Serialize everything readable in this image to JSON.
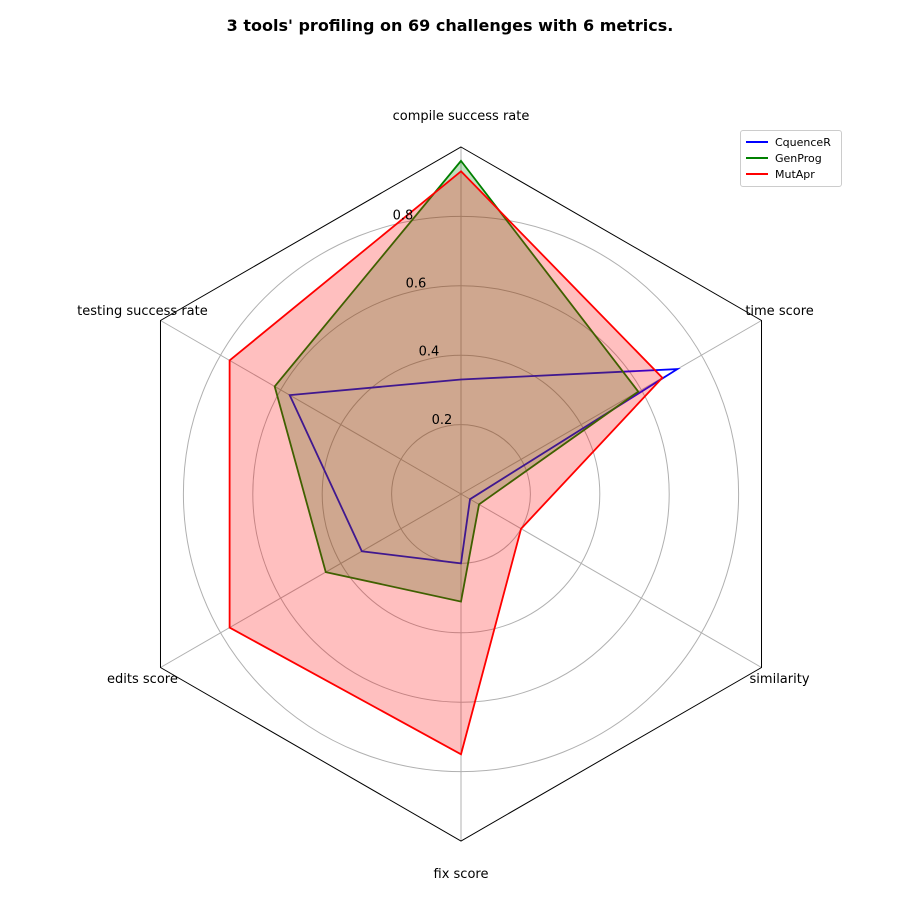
{
  "chart_data": {
    "type": "radar",
    "title": "3 tools' profiling on 69 challenges with 6 metrics.",
    "axes": [
      "compile success rate",
      "time score",
      "similarity",
      "fix score",
      "edits score",
      "testing success rate"
    ],
    "radial_ticks": [
      "0.2",
      "0.4",
      "0.6",
      "0.8"
    ],
    "radial_tick_values": [
      0.2,
      0.4,
      0.6,
      0.8
    ],
    "rmax": 1.0,
    "grid": true,
    "legend_position": "top-right",
    "series": [
      {
        "name": "CquenceR",
        "color": "#0000ff",
        "values": [
          0.33,
          0.72,
          0.03,
          0.2,
          0.33,
          0.57
        ],
        "fill": false
      },
      {
        "name": "GenProg",
        "color": "#008000",
        "values": [
          0.96,
          0.59,
          0.06,
          0.31,
          0.45,
          0.62
        ],
        "fill": true,
        "fill_color": "#008000"
      },
      {
        "name": "MutApr",
        "color": "#ff0000",
        "values": [
          0.93,
          0.67,
          0.2,
          0.75,
          0.77,
          0.77
        ],
        "fill": true,
        "fill_color": "#ff0000"
      }
    ]
  }
}
